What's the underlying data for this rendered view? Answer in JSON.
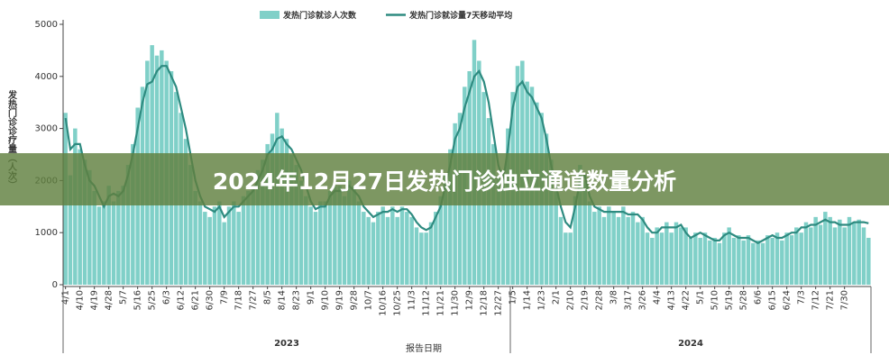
{
  "chart_data": {
    "type": "bar_line",
    "banner_title": "2024年12月27日发热门诊独立通道数量分析",
    "y_label": "发热门诊诊疗量（人次）",
    "x_label": "报告日期",
    "year_groups": [
      "2023",
      "2024"
    ],
    "ylim": [
      0,
      5000
    ],
    "yticks": [
      0,
      1000,
      2000,
      3000,
      4000,
      5000
    ],
    "categories": [
      "4/1",
      null,
      null,
      "4/10",
      null,
      null,
      "4/19",
      null,
      null,
      "4/28",
      null,
      null,
      "5/7",
      null,
      null,
      "5/16",
      null,
      null,
      "5/25",
      null,
      null,
      "6/3",
      null,
      null,
      "6/12",
      null,
      null,
      "6/21",
      null,
      null,
      "6/30",
      null,
      null,
      "7/9",
      null,
      null,
      "7/18",
      null,
      null,
      "7/27",
      null,
      null,
      "8/5",
      null,
      null,
      "8/14",
      null,
      null,
      "8/23",
      null,
      null,
      "9/1",
      null,
      null,
      "9/10",
      null,
      null,
      "9/19",
      null,
      null,
      "9/28",
      null,
      null,
      "10/7",
      null,
      null,
      "10/16",
      null,
      null,
      "10/25",
      null,
      null,
      "11/3",
      null,
      null,
      "11/12",
      null,
      null,
      "11/21",
      null,
      null,
      "11/30",
      null,
      null,
      "12/9",
      null,
      null,
      "12/18",
      null,
      null,
      "12/27",
      null,
      null,
      "1/5",
      null,
      null,
      "1/14",
      null,
      null,
      "1/23",
      null,
      null,
      "2/1",
      null,
      null,
      "2/10",
      null,
      null,
      "2/19",
      null,
      null,
      "2/28",
      null,
      null,
      "3/8",
      null,
      null,
      "3/17",
      null,
      null,
      "3/26",
      null,
      null,
      "4/4",
      null,
      null,
      "4/13",
      null,
      null,
      "4/22",
      null,
      null,
      "5/1",
      null,
      null,
      "5/10",
      null,
      null,
      "5/19",
      null,
      null,
      "5/28",
      null,
      null,
      "6/6",
      null,
      null,
      "6/15",
      null,
      null,
      "6/24",
      null,
      null,
      "7/3",
      null,
      null,
      "7/12",
      null,
      null,
      "7/21",
      null,
      null,
      "7/30",
      null,
      null,
      null,
      null,
      null
    ],
    "series": [
      {
        "name": "发热门诊就诊人次数",
        "kind": "bar",
        "color": "#80d0c8",
        "values": [
          3300,
          2100,
          3000,
          2600,
          2400,
          2200,
          1800,
          1500,
          1600,
          1900,
          1600,
          1800,
          1900,
          2300,
          2700,
          3400,
          3800,
          4300,
          4600,
          4400,
          4500,
          4300,
          4100,
          3700,
          3300,
          2800,
          2300,
          1800,
          1600,
          1400,
          1300,
          1500,
          1600,
          1200,
          1500,
          1600,
          1400,
          1700,
          1800,
          1900,
          2200,
          2400,
          2700,
          2900,
          3300,
          3000,
          2800,
          2500,
          2300,
          2000,
          1700,
          1500,
          1400,
          1600,
          1600,
          1800,
          1900,
          1900,
          1700,
          2000,
          1900,
          1600,
          1400,
          1300,
          1200,
          1400,
          1500,
          1300,
          1500,
          1300,
          1500,
          1400,
          1300,
          1100,
          1000,
          1000,
          1200,
          1400,
          1700,
          2100,
          2600,
          3100,
          3300,
          3800,
          4100,
          4700,
          4300,
          3700,
          3200,
          2700,
          2100,
          2200,
          3000,
          3700,
          4200,
          4300,
          3900,
          3800,
          3500,
          3300,
          2900,
          2400,
          1800,
          1300,
          1000,
          1000,
          1700,
          2300,
          2000,
          1600,
          1400,
          1500,
          1300,
          1500,
          1400,
          1300,
          1500,
          1300,
          1400,
          1200,
          1300,
          1000,
          900,
          1100,
          1000,
          1200,
          1000,
          1200,
          1100,
          1100,
          900,
          1000,
          900,
          1000,
          850,
          900,
          800,
          1000,
          1100,
          900,
          950,
          850,
          950,
          800,
          850,
          800,
          950,
          900,
          1000,
          850,
          1000,
          950,
          1100,
          1000,
          1200,
          1100,
          1300,
          1150,
          1400,
          1300,
          1100,
          1250,
          1100,
          1300,
          1200,
          1250,
          1100,
          900
        ]
      },
      {
        "name": "发热门诊就诊量7天移动平均",
        "kind": "line",
        "color": "#2e8b80",
        "values": [
          3200,
          2600,
          2700,
          2700,
          2300,
          2000,
          1900,
          1700,
          1500,
          1700,
          1750,
          1700,
          1800,
          2100,
          2500,
          3000,
          3500,
          3850,
          3900,
          4100,
          4200,
          4200,
          4000,
          3800,
          3400,
          3000,
          2500,
          2000,
          1700,
          1500,
          1450,
          1400,
          1500,
          1300,
          1400,
          1500,
          1500,
          1600,
          1700,
          1800,
          2000,
          2200,
          2500,
          2600,
          2800,
          2850,
          2700,
          2600,
          2400,
          2200,
          1900,
          1600,
          1450,
          1500,
          1500,
          1700,
          1800,
          1800,
          1800,
          1900,
          1800,
          1700,
          1500,
          1400,
          1300,
          1350,
          1400,
          1400,
          1450,
          1400,
          1450,
          1450,
          1350,
          1200,
          1100,
          1050,
          1100,
          1300,
          1500,
          1900,
          2300,
          2800,
          3000,
          3400,
          3700,
          4000,
          4100,
          3900,
          3500,
          2900,
          2300,
          2000,
          2600,
          3400,
          3800,
          3900,
          3700,
          3600,
          3400,
          3200,
          2800,
          2300,
          1900,
          1500,
          1200,
          1100,
          1500,
          2000,
          2100,
          1700,
          1500,
          1450,
          1400,
          1400,
          1400,
          1400,
          1400,
          1350,
          1350,
          1350,
          1250,
          1100,
          1000,
          1000,
          1100,
          1100,
          1100,
          1100,
          1150,
          1000,
          900,
          950,
          1000,
          950,
          900,
          850,
          850,
          950,
          1000,
          950,
          900,
          900,
          900,
          850,
          800,
          850,
          900,
          950,
          900,
          900,
          950,
          1000,
          1000,
          1100,
          1100,
          1150,
          1150,
          1200,
          1250,
          1200,
          1200,
          1150,
          1150,
          1150,
          1200,
          1200,
          1200,
          1180
        ]
      }
    ]
  }
}
